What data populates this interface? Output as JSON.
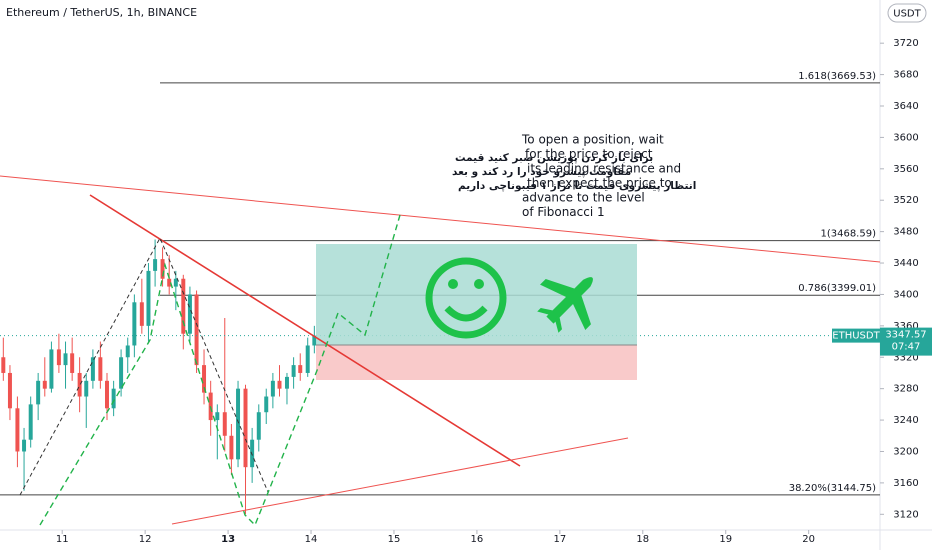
{
  "chart_data": {
    "type": "candlestick",
    "title": "Ethereum / TetherUS, 1h, BINANCE",
    "x": [
      10.29,
      10.37,
      10.46,
      10.54,
      10.62,
      10.71,
      10.79,
      10.87,
      10.96,
      11.04,
      11.12,
      11.21,
      11.29,
      11.37,
      11.46,
      11.54,
      11.62,
      11.71,
      11.79,
      11.87,
      11.96,
      12.04,
      12.12,
      12.21,
      12.29,
      12.37,
      12.46,
      12.54,
      12.62,
      12.71,
      12.79,
      12.87,
      12.96,
      13.04,
      13.12,
      13.21,
      13.29,
      13.37,
      13.46,
      13.54,
      13.62,
      13.71,
      13.79,
      13.87,
      13.96,
      14.04
    ],
    "open": [
      3320,
      3300,
      3255,
      3200,
      3215,
      3260,
      3290,
      3280,
      3330,
      3310,
      3325,
      3300,
      3270,
      3290,
      3320,
      3290,
      3255,
      3280,
      3320,
      3335,
      3390,
      3360,
      3430,
      3445,
      3420,
      3410,
      3420,
      3350,
      3400,
      3310,
      3275,
      3240,
      3250,
      3220,
      3190,
      3280,
      3180,
      3215,
      3250,
      3270,
      3290,
      3280,
      3295,
      3310,
      3300,
      3335
    ],
    "high": [
      3345,
      3310,
      3270,
      3230,
      3270,
      3300,
      3320,
      3340,
      3350,
      3340,
      3345,
      3320,
      3300,
      3330,
      3340,
      3300,
      3290,
      3330,
      3345,
      3400,
      3420,
      3440,
      3470,
      3460,
      3450,
      3430,
      3425,
      3410,
      3405,
      3330,
      3290,
      3260,
      3370,
      3235,
      3290,
      3285,
      3230,
      3260,
      3280,
      3300,
      3310,
      3300,
      3320,
      3325,
      3345,
      3360
    ],
    "low": [
      3290,
      3240,
      3180,
      3150,
      3205,
      3240,
      3270,
      3275,
      3300,
      3280,
      3290,
      3250,
      3230,
      3280,
      3280,
      3240,
      3245,
      3270,
      3300,
      3320,
      3350,
      3340,
      3410,
      3410,
      3400,
      3380,
      3330,
      3340,
      3300,
      3260,
      3220,
      3190,
      3200,
      3170,
      3180,
      3120,
      3160,
      3200,
      3235,
      3255,
      3270,
      3260,
      3280,
      3290,
      3295,
      3325
    ],
    "close": [
      3300,
      3255,
      3200,
      3215,
      3260,
      3290,
      3280,
      3330,
      3310,
      3325,
      3300,
      3270,
      3290,
      3320,
      3290,
      3255,
      3280,
      3320,
      3335,
      3390,
      3360,
      3430,
      3445,
      3420,
      3410,
      3420,
      3350,
      3400,
      3310,
      3275,
      3240,
      3250,
      3220,
      3190,
      3280,
      3180,
      3215,
      3250,
      3270,
      3290,
      3280,
      3295,
      3310,
      3300,
      3335,
      3347.57
    ],
    "up_color": "#26a69a",
    "down_color": "#ef5350",
    "xlim": [
      10.25,
      20.86
    ],
    "xticks": [
      11,
      12,
      13,
      14,
      15,
      16,
      17,
      18,
      19,
      20
    ],
    "ylim": [
      3100,
      3775
    ],
    "yticks": [
      3120,
      3160,
      3200,
      3240,
      3280,
      3320,
      3360,
      3400,
      3440,
      3480,
      3520,
      3560,
      3600,
      3640,
      3680,
      3720
    ],
    "currency": "USDT",
    "symbol": "ETHUSDT",
    "countdown": "07:47",
    "levels": [
      {
        "label": "1.618(3669.53)",
        "value": 3669.53
      },
      {
        "label": "1(3468.59)",
        "value": 3468.59
      },
      {
        "label": "0.786(3399.01)",
        "value": 3399.01
      },
      {
        "label": "38.20%(3144.75)",
        "value": 3144.75
      }
    ],
    "annotations": {
      "english": [
        "To open a position, wait",
        "for the price to reject",
        "its leading resistance and",
        "then expect the price to",
        "advance to the level",
        "of Fibonacci 1"
      ],
      "persian": [
        "برای باز کردن پوزیشن صبر کنید قیمت",
        "مقاومت پیشرو خود را رد کند و بعد",
        "انتظار پیشروی قیمت تا تراز ۱ فیبوناچی داریم"
      ]
    }
  }
}
